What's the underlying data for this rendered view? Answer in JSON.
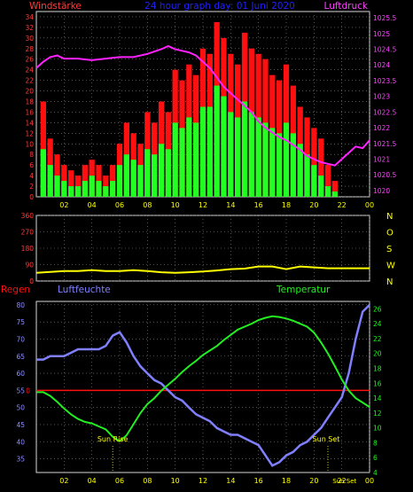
{
  "header": {
    "left_label": "Windstärke",
    "center_title": "24 hour graph day:  01 Juni 2020",
    "right_label": "Luftdruck"
  },
  "colors": {
    "background": "#000000",
    "frame": "#d8d8d8",
    "grid": "#8a8a8a",
    "wind_gust": "#ff1010",
    "wind_speed": "#22ff22",
    "pressure": "#ff22ff",
    "direction": "#ffff00",
    "humidity": "#8080ff",
    "temperature": "#22ee22",
    "rain": "#ff1010",
    "x_ticks": "#ffff00",
    "left_ticks": "#ff3b3b",
    "right_ticks": "#ff40ff",
    "hum_ticks": "#8c8cff",
    "temp_ticks": "#22ee22",
    "title": "#2020ff"
  },
  "chart_data": [
    {
      "id": "wind_pressure",
      "type": "bar",
      "title": "24 hour graph day:  01 Juni 2020",
      "xlabel": "",
      "ylabel_left": "Windstärke",
      "ylabel_right": "Luftdruck",
      "x_ticks": [
        "02",
        "04",
        "06",
        "08",
        "10",
        "12",
        "14",
        "16",
        "18",
        "20",
        "22",
        "00"
      ],
      "xlim": [
        0,
        24
      ],
      "y_left_ticks": [
        0,
        2,
        4,
        6,
        8,
        10,
        12,
        14,
        16,
        18,
        20,
        22,
        24,
        26,
        28,
        30,
        32,
        34
      ],
      "y_left_lim": [
        0,
        35
      ],
      "y_right_ticks": [
        "1025.5",
        "1025",
        "1024.5",
        "1024",
        "1023.5",
        "1023",
        "1022.5",
        "1022",
        "1021.5",
        "1021",
        "1020.5",
        "1020"
      ],
      "y_right_lim": [
        1019.8,
        1025.7
      ],
      "grid": true,
      "series": [
        {
          "name": "Windstärke",
          "kind": "gust_bars",
          "x": [
            0.5,
            1,
            1.5,
            2,
            2.5,
            3,
            3.5,
            4,
            4.5,
            5,
            5.5,
            6,
            6.5,
            7,
            7.5,
            8,
            8.5,
            9,
            9.5,
            10,
            10.5,
            11,
            11.5,
            12,
            12.5,
            13,
            13.5,
            14,
            14.5,
            15,
            15.5,
            16,
            16.5,
            17,
            17.5,
            18,
            18.5,
            19,
            19.5,
            20,
            20.5,
            21,
            21.5
          ],
          "values": [
            18,
            11,
            8,
            6,
            5,
            4,
            6,
            7,
            6,
            4,
            6,
            10,
            14,
            12,
            10,
            16,
            14,
            18,
            16,
            24,
            22,
            25,
            23,
            28,
            27,
            33,
            30,
            27,
            25,
            31,
            28,
            27,
            26,
            23,
            22,
            25,
            21,
            17,
            15,
            13,
            11,
            6,
            3
          ]
        },
        {
          "name": "",
          "kind": "speed_bars",
          "x": [
            0.5,
            1,
            1.5,
            2,
            2.5,
            3,
            3.5,
            4,
            4.5,
            5,
            5.5,
            6,
            6.5,
            7,
            7.5,
            8,
            8.5,
            9,
            9.5,
            10,
            10.5,
            11,
            11.5,
            12,
            12.5,
            13,
            13.5,
            14,
            14.5,
            15,
            15.5,
            16,
            16.5,
            17,
            17.5,
            18,
            18.5,
            19,
            19.5,
            20,
            20.5,
            21,
            21.5
          ],
          "values": [
            9,
            6,
            4,
            3,
            2,
            2,
            3,
            4,
            3,
            2,
            3,
            6,
            8,
            7,
            6,
            9,
            8,
            10,
            9,
            14,
            13,
            15,
            14,
            17,
            17,
            21,
            19,
            16,
            15,
            18,
            16,
            15,
            14,
            13,
            12,
            14,
            12,
            10,
            8,
            6,
            4,
            2,
            1
          ]
        },
        {
          "name": "Luftdruck",
          "kind": "line",
          "x": [
            0,
            0.5,
            1,
            1.5,
            2,
            3,
            4,
            5,
            6,
            7,
            8,
            9,
            9.5,
            10,
            10.5,
            11,
            11.5,
            12,
            12.5,
            13,
            13.5,
            14,
            14.5,
            15,
            15.5,
            16,
            16.5,
            17,
            17.5,
            18,
            18.5,
            19,
            19.5,
            20,
            20.5,
            21,
            21.5,
            22,
            22.5,
            23,
            23.5,
            24
          ],
          "values": [
            1023.9,
            1024.1,
            1024.25,
            1024.3,
            1024.2,
            1024.2,
            1024.15,
            1024.2,
            1024.25,
            1024.25,
            1024.35,
            1024.5,
            1024.6,
            1024.5,
            1024.45,
            1024.4,
            1024.3,
            1024.1,
            1023.9,
            1023.6,
            1023.3,
            1023.1,
            1022.9,
            1022.7,
            1022.5,
            1022.2,
            1022.0,
            1021.85,
            1021.7,
            1021.6,
            1021.45,
            1021.3,
            1021.1,
            1021.0,
            1020.9,
            1020.85,
            1020.8,
            1021.0,
            1021.2,
            1021.4,
            1021.35,
            1021.6
          ]
        }
      ]
    },
    {
      "id": "wind_direction",
      "type": "line",
      "title": "",
      "y_left_ticks": [
        0,
        90,
        180,
        270,
        360
      ],
      "y_left_lim": [
        0,
        360
      ],
      "y_right_ticks": [
        "N",
        "W",
        "S",
        "O",
        "N"
      ],
      "xlim": [
        0,
        24
      ],
      "grid": true,
      "series": [
        {
          "name": "",
          "x": [
            0,
            1,
            2,
            3,
            4,
            5,
            6,
            7,
            8,
            9,
            10,
            11,
            12,
            13,
            14,
            15,
            16,
            17,
            18,
            19,
            20,
            21,
            22,
            23,
            24
          ],
          "values": [
            45,
            50,
            55,
            55,
            60,
            55,
            55,
            60,
            55,
            48,
            45,
            48,
            52,
            58,
            65,
            68,
            80,
            80,
            65,
            80,
            75,
            70,
            70,
            70,
            70
          ]
        }
      ]
    },
    {
      "id": "temp_humidity",
      "type": "line",
      "title": "",
      "labels": {
        "rain": "Regen",
        "humidity": "Luftfeuchte",
        "temperature": "Temperatur"
      },
      "x_ticks": [
        "02",
        "04",
        "06",
        "08",
        "10",
        "12",
        "14",
        "16",
        "18",
        "20",
        "22",
        "00"
      ],
      "xlim": [
        0,
        24
      ],
      "y_left_ticks": [
        35,
        40,
        45,
        50,
        55,
        60,
        65,
        70,
        75,
        80
      ],
      "y_left_lim": [
        31,
        81
      ],
      "y_right_ticks": [
        4,
        6,
        8,
        10,
        12,
        14,
        16,
        18,
        20,
        22,
        24,
        26
      ],
      "y_right_lim": [
        4,
        27
      ],
      "rain_axis_tick": "0",
      "rain_value": 0,
      "annotations": [
        "Sun Rise",
        "Sun Set"
      ],
      "x_extra_labels": [
        "Sun Set"
      ],
      "grid": true,
      "series": [
        {
          "name": "Luftfeuchte",
          "x": [
            0,
            0.5,
            1,
            1.5,
            2,
            2.5,
            3,
            3.5,
            4,
            4.5,
            5,
            5.5,
            6,
            6.5,
            7,
            7.5,
            8,
            8.5,
            9,
            9.5,
            10,
            10.5,
            11,
            11.5,
            12,
            12.5,
            13,
            13.5,
            14,
            14.5,
            15,
            15.5,
            16,
            16.5,
            17,
            17.5,
            18,
            18.5,
            19,
            19.5,
            20,
            20.5,
            21,
            21.5,
            22,
            22.5,
            23,
            23.5,
            24
          ],
          "values": [
            64,
            64,
            65,
            65,
            65,
            66,
            67,
            67,
            67,
            67,
            68,
            71,
            72,
            69,
            65,
            62,
            60,
            58,
            57,
            55,
            53,
            52,
            50,
            48,
            47,
            46,
            44,
            43,
            42,
            42,
            41,
            40,
            39,
            36,
            33,
            34,
            36,
            37,
            39,
            40,
            42,
            44,
            47,
            50,
            53,
            60,
            70,
            78,
            80
          ]
        },
        {
          "name": "Temperatur",
          "x": [
            0,
            0.5,
            1,
            1.5,
            2,
            2.5,
            3,
            3.5,
            4,
            4.5,
            5,
            5.5,
            6,
            6.5,
            7,
            7.5,
            8,
            8.5,
            9,
            9.5,
            10,
            10.5,
            11,
            11.5,
            12,
            12.5,
            13,
            13.5,
            14,
            14.5,
            15,
            15.5,
            16,
            16.5,
            17,
            17.5,
            18,
            18.5,
            19,
            19.5,
            20,
            20.5,
            21,
            21.5,
            22,
            22.5,
            23,
            23.5,
            24
          ],
          "values": [
            14.8,
            14.8,
            14.3,
            13.5,
            12.6,
            11.8,
            11.2,
            10.8,
            10.6,
            10.2,
            9.8,
            8.8,
            8.2,
            9.0,
            10.5,
            12.0,
            13.2,
            14.0,
            15.0,
            15.8,
            16.6,
            17.5,
            18.3,
            19.0,
            19.8,
            20.4,
            21.0,
            21.8,
            22.5,
            23.2,
            23.6,
            24.0,
            24.5,
            24.8,
            25.0,
            24.9,
            24.7,
            24.4,
            24.0,
            23.6,
            22.8,
            21.5,
            20.0,
            18.3,
            16.5,
            15.0,
            14.0,
            13.4,
            12.8
          ]
        }
      ]
    }
  ]
}
